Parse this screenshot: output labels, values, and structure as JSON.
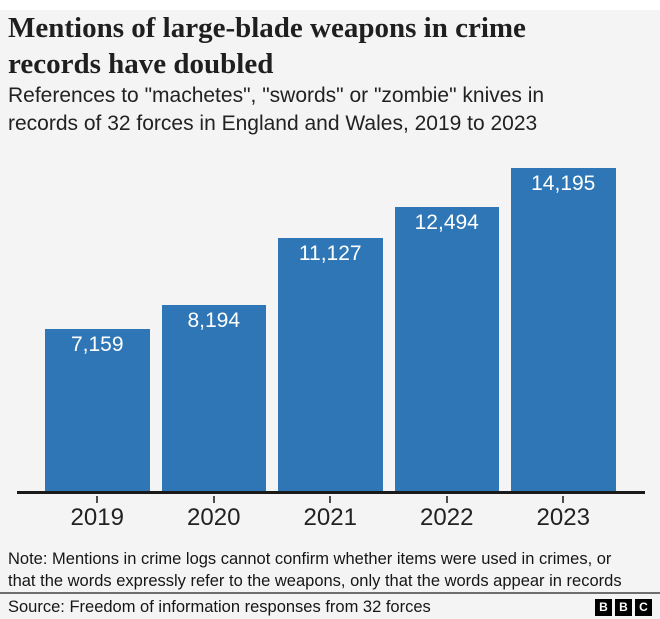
{
  "header": {
    "title": "Mentions of large-blade weapons in crime records have doubled",
    "title_lines": [
      "Mentions of large-blade weapons in crime",
      "records have doubled"
    ],
    "subtitle": "References to \"machetes\", \"swords\" or \"zombie\" knives in records of 32 forces in England and Wales, 2019 to 2023",
    "subtitle_lines": [
      "References to \"machetes\", \"swords\" or \"zombie\" knives in",
      "records of 32 forces in England and Wales, 2019 to 2023"
    ]
  },
  "chart_data": {
    "type": "bar",
    "categories": [
      "2019",
      "2020",
      "2021",
      "2022",
      "2023"
    ],
    "values": [
      7159,
      8194,
      11127,
      12494,
      14195
    ],
    "value_labels": [
      "7,159",
      "8,194",
      "11,127",
      "12,494",
      "14,195"
    ],
    "title": "Mentions of large-blade weapons in crime records have doubled",
    "xlabel": "",
    "ylabel": "",
    "ylim": [
      0,
      14195
    ],
    "grid": false,
    "legend": false,
    "bar_color": "#2e76b5",
    "value_label_color": "#ffffff",
    "axis_color": "#1a1a1a"
  },
  "footer": {
    "note": "Note: Mentions in crime logs cannot confirm whether items were used in crimes, or that the words expressly refer to the weapons, only that the words appear in records",
    "note_lines": [
      "Note: Mentions in crime logs cannot confirm whether items were used in crimes, or",
      "that the words expressly refer to the weapons, only that the words appear in records"
    ],
    "source": "Source: Freedom of information responses from 32 forces",
    "logo_letters": [
      "B",
      "B",
      "C"
    ]
  },
  "colors": {
    "background": "#f4f4f4",
    "bar": "#2e76b5",
    "text": "#1f1f1f"
  }
}
